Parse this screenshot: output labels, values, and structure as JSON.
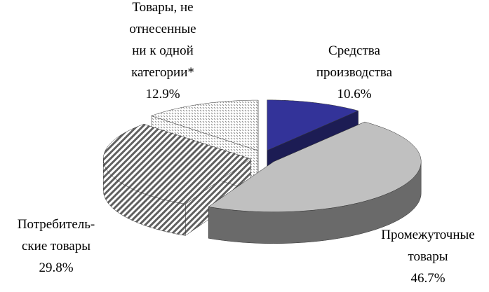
{
  "chart_data": {
    "type": "pie3d",
    "categories": [
      "Средства\nпроизводства",
      "Промежуточные\nтовары",
      "Потребитель-\nские товары",
      "Товары, не\nотнесенные\nни к одной\nкатегории*"
    ],
    "values": [
      10.6,
      46.7,
      29.8,
      12.9
    ],
    "value_labels": [
      "10.6%",
      "46.7%",
      "29.8%",
      "12.9%"
    ],
    "colors": [
      "#333399",
      "#c0c0c0",
      "#606060",
      "#909090"
    ],
    "patterns": [
      null,
      null,
      "hatch",
      "dots"
    ]
  }
}
